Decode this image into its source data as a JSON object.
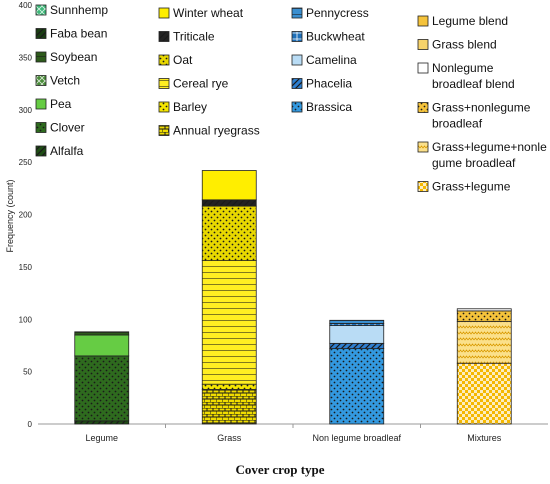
{
  "chart_data": {
    "type": "bar",
    "stacked": true,
    "xlabel": "Cover crop type",
    "ylabel": "Frequency (count)",
    "ylim": [
      0,
      400
    ],
    "yticks": [
      0,
      50,
      100,
      150,
      200,
      250,
      300,
      350,
      400
    ],
    "categories": [
      "Legume",
      "Grass",
      "Non legume broadleaf",
      "Mixtures"
    ],
    "grid": false,
    "legend": "top",
    "series": [
      {
        "name": "Sunnhemp",
        "category": "Legume",
        "value": 0,
        "color": "#3cb878",
        "pattern": "x"
      },
      {
        "name": "Faba bean",
        "category": "Legume",
        "value": 0,
        "color": "#1a3d12",
        "pattern": "diag"
      },
      {
        "name": "Soybean",
        "category": "Legume",
        "value": 3,
        "color": "#2d5a1b",
        "pattern": "hlines"
      },
      {
        "name": "Vetch",
        "category": "Legume",
        "value": 0,
        "color": "#4a8c3a",
        "pattern": "x"
      },
      {
        "name": "Pea",
        "category": "Legume",
        "value": 20,
        "color": "#66cc44",
        "pattern": "solid"
      },
      {
        "name": "Clover",
        "category": "Legume",
        "value": 62,
        "color": "#2e6b1e",
        "pattern": "dots"
      },
      {
        "name": "Alfalfa",
        "category": "Legume",
        "value": 3,
        "color": "#1e4d14",
        "pattern": "diag"
      },
      {
        "name": "Winter wheat",
        "category": "Grass",
        "value": 28,
        "color": "#ffee00",
        "pattern": "solid"
      },
      {
        "name": "Triticale",
        "category": "Grass",
        "value": 6,
        "color": "#222222",
        "pattern": "diag"
      },
      {
        "name": "Oat",
        "category": "Grass",
        "value": 52,
        "color": "#e8d800",
        "pattern": "dots"
      },
      {
        "name": "Cereal rye",
        "category": "Grass",
        "value": 118,
        "color": "#ffee22",
        "pattern": "hlines"
      },
      {
        "name": "Barley",
        "category": "Grass",
        "value": 5,
        "color": "#f5e600",
        "pattern": "dots"
      },
      {
        "name": "Annual ryegrass",
        "category": "Grass",
        "value": 33,
        "color": "#f0dd00",
        "pattern": "brick"
      },
      {
        "name": "Pennycress",
        "category": "Non legume broadleaf",
        "value": 3,
        "color": "#3a8fd0",
        "pattern": "hlines"
      },
      {
        "name": "Buckwheat",
        "category": "Non legume broadleaf",
        "value": 2,
        "color": "#1e6fb8",
        "pattern": "grid"
      },
      {
        "name": "Camelina",
        "category": "Non legume broadleaf",
        "value": 17,
        "color": "#b9dcf5",
        "pattern": "solid"
      },
      {
        "name": "Phacelia",
        "category": "Non legume broadleaf",
        "value": 5,
        "color": "#2e7fd0",
        "pattern": "diag"
      },
      {
        "name": "Brassica",
        "category": "Non legume broadleaf",
        "value": 72,
        "color": "#3399e0",
        "pattern": "dots"
      },
      {
        "name": "Legume blend",
        "category": "Mixtures",
        "value": 0,
        "color": "#f5c33b",
        "pattern": "solid"
      },
      {
        "name": "Grass blend",
        "category": "Mixtures",
        "value": 0,
        "color": "#f7d36b",
        "pattern": "solid"
      },
      {
        "name": "Nonlegume broadleaf blend",
        "category": "Mixtures",
        "value": 2,
        "color": "#ffffff",
        "pattern": "solid"
      },
      {
        "name": "Grass+nonlegume broadleaf",
        "category": "Mixtures",
        "value": 10,
        "color": "#f5c33b",
        "pattern": "dots"
      },
      {
        "name": "Grass+legume+nonlegume broadleaf",
        "category": "Mixtures",
        "value": 40,
        "color": "#fbe08a",
        "pattern": "zigzag"
      },
      {
        "name": "Grass+legume",
        "category": "Mixtures",
        "value": 58,
        "color": "#f5b800",
        "pattern": "check"
      }
    ]
  },
  "legend_columns": [
    {
      "items": [
        {
          "label": "Sunnhemp",
          "series": 0
        },
        {
          "label": "Faba bean",
          "series": 1
        },
        {
          "label": "Soybean",
          "series": 2
        },
        {
          "label": "Vetch",
          "series": 3
        },
        {
          "label": "Pea",
          "series": 4
        },
        {
          "label": "Clover",
          "series": 5
        },
        {
          "label": "Alfalfa",
          "series": 6
        }
      ]
    },
    {
      "items": [
        {
          "label": "Winter wheat",
          "series": 7
        },
        {
          "label": "Triticale",
          "series": 8
        },
        {
          "label": "Oat",
          "series": 9
        },
        {
          "label": "Cereal rye",
          "series": 10
        },
        {
          "label": "Barley",
          "series": 11
        },
        {
          "label": "Annual ryegrass",
          "series": 12
        }
      ]
    },
    {
      "items": [
        {
          "label": "Pennycress",
          "series": 13
        },
        {
          "label": "Buckwheat",
          "series": 14
        },
        {
          "label": "Camelina",
          "series": 15
        },
        {
          "label": "Phacelia",
          "series": 16
        },
        {
          "label": "Brassica",
          "series": 17
        }
      ]
    },
    {
      "items": [
        {
          "label": [
            "Legume blend"
          ],
          "series": 18
        },
        {
          "label": [
            "Grass blend"
          ],
          "series": 19
        },
        {
          "label": [
            "Nonlegume",
            "broadleaf blend"
          ],
          "series": 20
        },
        {
          "label": [
            "Grass+nonlegume",
            "broadleaf"
          ],
          "series": 21
        },
        {
          "label": [
            "Grass+legume+nonle",
            "gume broadleaf"
          ],
          "series": 22
        },
        {
          "label": [
            "Grass+legume"
          ],
          "series": 23
        }
      ]
    }
  ]
}
